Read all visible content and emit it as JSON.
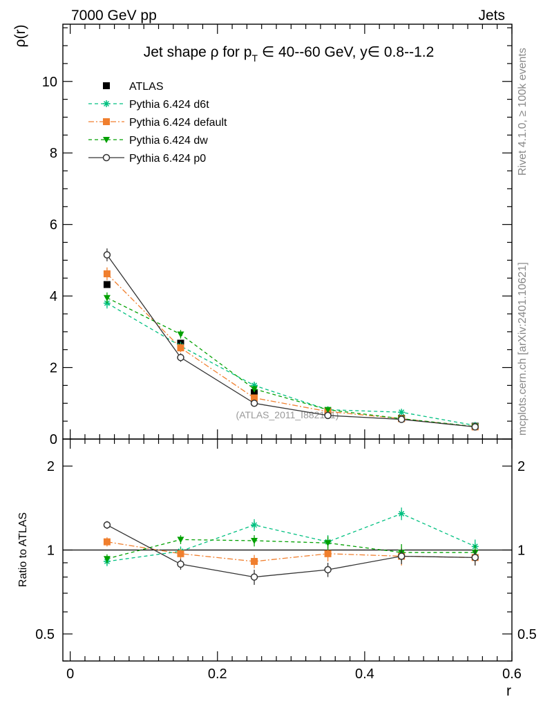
{
  "header": {
    "left": "7000 GeV pp",
    "right": "Jets"
  },
  "side_text": {
    "rivet": "Rivet 4.1.0, ≥ 100k events",
    "mcplots": "mcplots.cern.ch [arXiv:2401.10621]"
  },
  "chart_data": [
    {
      "type": "line",
      "title": "Jet shape ρ for p_T ∈ 40--60 GeV, y∈ 0.8--1.2",
      "title_parts": {
        "prefix": "Jet shape ρ for p",
        "sub": "T",
        "suffix": " ∈ 40--60 GeV, y∈ 0.8--1.2"
      },
      "ylabel": "ρ(r)",
      "xlabel": "r",
      "xlim": [
        -0.01,
        0.6
      ],
      "ylim": [
        0,
        11.6
      ],
      "yticks": [
        0,
        2,
        4,
        6,
        8,
        10
      ],
      "ytick_labels": [
        "0",
        "2",
        "4",
        "6",
        "8",
        "10"
      ],
      "watermark": "(ATLAS_2011_I882181)",
      "x": [
        0.05,
        0.15,
        0.25,
        0.35,
        0.45,
        0.55
      ],
      "series": [
        {
          "name": "ATLAS",
          "color": "#000000",
          "marker": "square-filled",
          "dash": "none",
          "values": [
            4.32,
            2.68,
            1.3,
            0.78,
            0.58,
            0.36
          ],
          "err": [
            0,
            0,
            0,
            0,
            0,
            0
          ]
        },
        {
          "name": "Pythia 6.424 d6t",
          "color": "#00c080",
          "marker": "star",
          "dash": "5,4",
          "values": [
            3.8,
            2.6,
            1.5,
            0.82,
            0.75,
            0.38
          ],
          "err": [
            0.15,
            0.12,
            0.1,
            0.06,
            0.05,
            0.03
          ]
        },
        {
          "name": "Pythia 6.424 default",
          "color": "#f07f2e",
          "marker": "square-filled",
          "dash": "8,3,2,3",
          "values": [
            4.62,
            2.55,
            1.15,
            0.77,
            0.57,
            0.34
          ],
          "err": [
            0.18,
            0.12,
            0.09,
            0.06,
            0.05,
            0.03
          ]
        },
        {
          "name": "Pythia 6.424 dw",
          "color": "#00a000",
          "marker": "triangle-down",
          "dash": "5,4",
          "values": [
            3.95,
            2.93,
            1.4,
            0.82,
            0.57,
            0.35
          ],
          "err": [
            0.15,
            0.12,
            0.09,
            0.06,
            0.05,
            0.03
          ]
        },
        {
          "name": "Pythia 6.424 p0",
          "color": "#333333",
          "marker": "circle-open",
          "dash": "none",
          "values": [
            5.15,
            2.28,
            1.0,
            0.66,
            0.55,
            0.34
          ],
          "err": [
            0.18,
            0.12,
            0.08,
            0.05,
            0.04,
            0.03
          ]
        }
      ]
    },
    {
      "type": "line",
      "title": "",
      "ylabel": "Ratio to ATLAS",
      "xlabel": "r",
      "xlim": [
        -0.01,
        0.6
      ],
      "ylim": [
        0.4,
        2.5
      ],
      "yscale": "log",
      "yticks": [
        0.5,
        1,
        2
      ],
      "ytick_labels": [
        "0.5",
        "1",
        "2"
      ],
      "xticks": [
        0,
        0.2,
        0.4,
        0.6
      ],
      "xtick_labels": [
        "0",
        "0.2",
        "0.4",
        "0.6"
      ],
      "reference_line": 1,
      "x": [
        0.05,
        0.15,
        0.25,
        0.35,
        0.45,
        0.55
      ],
      "series": [
        {
          "name": "Pythia 6.424 d6t",
          "values": [
            0.91,
            0.99,
            1.23,
            1.07,
            1.35,
            1.03
          ],
          "err": [
            0.035,
            0.04,
            0.06,
            0.06,
            0.07,
            0.06
          ]
        },
        {
          "name": "Pythia 6.424 default",
          "values": [
            1.07,
            0.97,
            0.91,
            0.97,
            0.95,
            0.94
          ],
          "err": [
            0.04,
            0.04,
            0.05,
            0.06,
            0.07,
            0.06
          ]
        },
        {
          "name": "Pythia 6.424 dw",
          "values": [
            0.93,
            1.09,
            1.08,
            1.06,
            0.98,
            0.98
          ],
          "err": [
            0.035,
            0.04,
            0.05,
            0.06,
            0.07,
            0.06
          ]
        },
        {
          "name": "Pythia 6.424 p0",
          "values": [
            1.23,
            0.89,
            0.8,
            0.85,
            0.95,
            0.94
          ],
          "err": [
            0.04,
            0.04,
            0.05,
            0.05,
            0.06,
            0.06
          ]
        }
      ]
    }
  ]
}
